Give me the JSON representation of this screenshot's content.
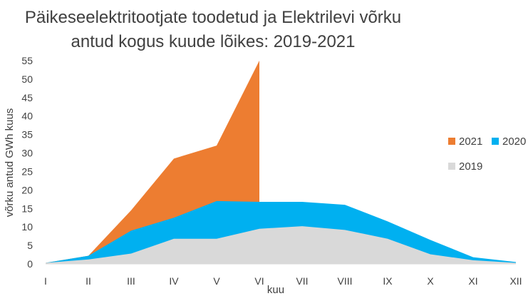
{
  "chart_data": {
    "type": "area",
    "title_lines": [
      "Päikeseelektritootjate toodetud ja Elektrilevi võrku",
      "antud kogus kuude lõikes: 2019-2021"
    ],
    "xlabel": "kuu",
    "ylabel": "võrku antud GWh kuus",
    "categories": [
      "I",
      "II",
      "III",
      "IV",
      "V",
      "VI",
      "VII",
      "VIII",
      "IX",
      "X",
      "XI",
      "XII"
    ],
    "yticks": [
      0,
      5,
      10,
      15,
      20,
      25,
      30,
      35,
      40,
      45,
      50,
      55
    ],
    "ylim": [
      0,
      55
    ],
    "grid": false,
    "legend_position": "right",
    "series": [
      {
        "name": "2021",
        "color": "#ED7D31",
        "values": [
          0.3,
          2.2,
          14.5,
          28.5,
          32,
          55,
          null,
          null,
          null,
          null,
          null,
          null
        ]
      },
      {
        "name": "2020",
        "color": "#00B0F0",
        "values": [
          0.3,
          2.2,
          9,
          12.5,
          17,
          16.8,
          16.8,
          16,
          11.5,
          6.5,
          1.8,
          0.5
        ]
      },
      {
        "name": "2019",
        "color": "#D9D9D9",
        "values": [
          0.3,
          1.2,
          2.8,
          6.8,
          6.8,
          9.5,
          10.2,
          9.2,
          6.8,
          2.6,
          1.0,
          0.3
        ]
      }
    ]
  }
}
